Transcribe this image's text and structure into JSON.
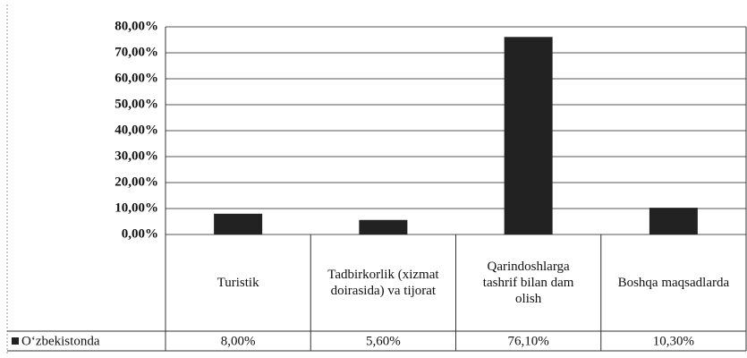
{
  "chart_data": {
    "type": "bar",
    "categories": [
      "Turistik",
      "Tadbirkorlik (xizmat doirasida) va tijorat",
      "Qarindoshlarga tashrif bilan dam olish",
      "Boshqa maqsadlarda"
    ],
    "series": [
      {
        "name": "O‘zbekistonda",
        "color": "#222222",
        "values": [
          8.0,
          5.6,
          76.1,
          10.3
        ],
        "value_labels": [
          "8,00%",
          "5,60%",
          "76,10%",
          "10,30%"
        ]
      }
    ],
    "ylim": [
      0,
      80
    ],
    "yticks": [
      {
        "value": 0,
        "label": "0,00%"
      },
      {
        "value": 10,
        "label": "10,00%"
      },
      {
        "value": 20,
        "label": "20,00%"
      },
      {
        "value": 30,
        "label": "30,00%"
      },
      {
        "value": 40,
        "label": "40,00%"
      },
      {
        "value": 50,
        "label": "50,00%"
      },
      {
        "value": 60,
        "label": "60,00%"
      },
      {
        "value": 70,
        "label": "70,00%"
      },
      {
        "value": 80,
        "label": "80,00%"
      }
    ],
    "grid": true
  }
}
